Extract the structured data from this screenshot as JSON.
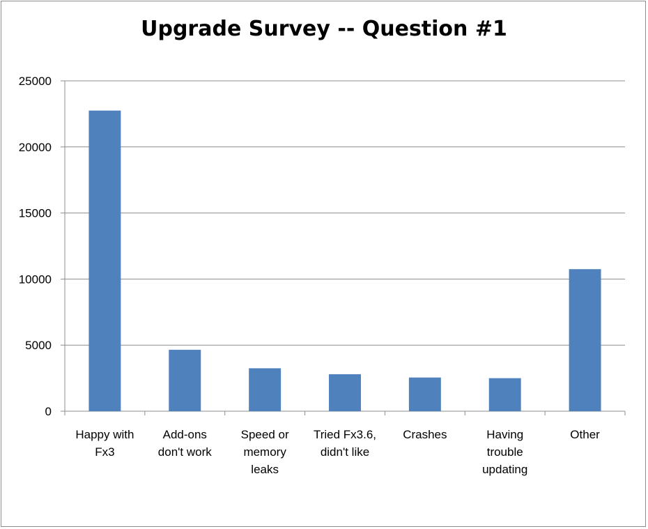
{
  "chart_data": {
    "type": "bar",
    "title": "Upgrade Survey -- Question #1",
    "xlabel": "",
    "ylabel": "",
    "ylim": [
      0,
      25000
    ],
    "yticks": [
      "0",
      "5000",
      "10000",
      "15000",
      "20000",
      "25000"
    ],
    "grid": true,
    "categories": [
      [
        "Happy with",
        "Fx3"
      ],
      [
        "Add-ons",
        "don't work"
      ],
      [
        "Speed or",
        "memory",
        "leaks"
      ],
      [
        "Tried Fx3.6,",
        "didn't like"
      ],
      [
        "Crashes"
      ],
      [
        "Having",
        "trouble",
        "updating"
      ],
      [
        "Other"
      ]
    ],
    "values": [
      22750,
      4650,
      3250,
      2800,
      2550,
      2500,
      10750
    ],
    "bar_color": "#4f81bd",
    "grid_color": "#8c8c8c"
  }
}
